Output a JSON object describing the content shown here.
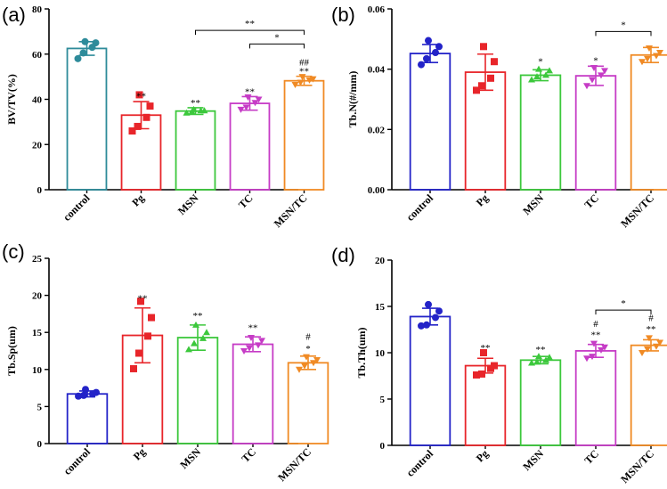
{
  "chart_data": [
    {
      "type": "bar",
      "panel_label": "(a)",
      "ylabel": "BV/TV(%)",
      "ylim": [
        0,
        80
      ],
      "yticks": [
        "0",
        "20",
        "40",
        "60",
        "80"
      ],
      "categories": [
        "control",
        "Pg",
        "MSN",
        "TC",
        "MSN/TC"
      ],
      "colors": [
        "#2E8B9A",
        "#E8252A",
        "#3CC83C",
        "#C63CC6",
        "#F08A24"
      ],
      "marker_shapes": [
        "circle",
        "square",
        "triangle",
        "triangle-down",
        "triangle-down"
      ],
      "values": [
        62.5,
        33,
        34.8,
        38.2,
        48.2
      ],
      "sd": [
        3,
        6,
        1.5,
        3,
        2
      ],
      "points": [
        [
          58,
          60.5,
          63,
          65,
          65.5
        ],
        [
          26,
          28,
          32,
          37,
          42
        ],
        [
          34,
          34.5,
          35,
          35,
          35.5
        ],
        [
          35.5,
          36.5,
          38.5,
          40,
          41
        ],
        [
          46.5,
          47.5,
          48.5,
          49,
          50
        ]
      ],
      "annotations": [
        {
          "category": 1,
          "text": "**",
          "value": 40
        },
        {
          "category": 2,
          "text": "**",
          "value": 37
        },
        {
          "category": 3,
          "text": "**",
          "value": 42
        },
        {
          "category": 4,
          "text": "**",
          "value": 51
        },
        {
          "category": 4,
          "text": "##",
          "value": 55
        }
      ],
      "brackets": [
        {
          "from": 2,
          "to": 4,
          "text": "**",
          "value": 70.5
        },
        {
          "from": 3,
          "to": 4,
          "text": "*",
          "value": 64.5
        }
      ]
    },
    {
      "type": "bar",
      "panel_label": "(b)",
      "ylabel": "Tb.N(#/mm)",
      "ylim": [
        0,
        0.06
      ],
      "yticks": [
        "0.00",
        "0.02",
        "0.04",
        "0.06"
      ],
      "categories": [
        "control",
        "Pg",
        "MSN",
        "TC",
        "MSN/TC"
      ],
      "colors": [
        "#2323C8",
        "#E8252A",
        "#3CC83C",
        "#C63CC6",
        "#F08A24"
      ],
      "marker_shapes": [
        "circle",
        "square",
        "triangle",
        "triangle-down",
        "triangle-down"
      ],
      "values": [
        0.0452,
        0.039,
        0.038,
        0.0378,
        0.0447
      ],
      "sd": [
        0.003,
        0.006,
        0.0018,
        0.0032,
        0.0025
      ],
      "points": [
        [
          0.0415,
          0.0435,
          0.0455,
          0.0475,
          0.0495
        ],
        [
          0.033,
          0.0345,
          0.037,
          0.0425,
          0.0475
        ],
        [
          0.0365,
          0.0375,
          0.038,
          0.0395,
          0.04
        ],
        [
          0.0345,
          0.0365,
          0.038,
          0.0395,
          0.0405
        ],
        [
          0.0425,
          0.0435,
          0.0445,
          0.0455,
          0.047
        ]
      ],
      "annotations": [
        {
          "category": 2,
          "text": "*",
          "value": 0.0415
        },
        {
          "category": 3,
          "text": "*",
          "value": 0.0418
        }
      ],
      "brackets": [
        {
          "from": 3,
          "to": 4,
          "text": "*",
          "value": 0.0525
        }
      ]
    },
    {
      "type": "bar",
      "panel_label": "(c)",
      "ylabel": "Tb.Sp(um)",
      "ylim": [
        0,
        25
      ],
      "yticks": [
        "0",
        "5",
        "10",
        "15",
        "20",
        "25"
      ],
      "categories": [
        "control",
        "Pg",
        "MSN",
        "TC",
        "MSN/TC"
      ],
      "colors": [
        "#2323C8",
        "#E8252A",
        "#3CC83C",
        "#C63CC6",
        "#F08A24"
      ],
      "marker_shapes": [
        "circle",
        "square",
        "triangle",
        "triangle-down",
        "triangle-down"
      ],
      "values": [
        6.7,
        14.6,
        14.3,
        13.4,
        10.9
      ],
      "sd": [
        0.4,
        3.7,
        1.7,
        1.0,
        0.9
      ],
      "points": [
        [
          6.4,
          6.5,
          6.7,
          6.9,
          7.3
        ],
        [
          10.1,
          12.2,
          14.5,
          17.0,
          19.2
        ],
        [
          12.7,
          13.5,
          14.2,
          15.0,
          16.0
        ],
        [
          12.5,
          12.9,
          13.3,
          13.9,
          14.3
        ],
        [
          10.0,
          10.5,
          10.9,
          11.3,
          11.7
        ]
      ],
      "annotations": [
        {
          "category": 1,
          "text": "**",
          "value": 19.2
        },
        {
          "category": 2,
          "text": "**",
          "value": 16.8
        },
        {
          "category": 3,
          "text": "**",
          "value": 15.2
        },
        {
          "category": 4,
          "text": "*",
          "value": 12.4
        },
        {
          "category": 4,
          "text": "#",
          "value": 14.0
        }
      ],
      "brackets": []
    },
    {
      "type": "bar",
      "panel_label": "(d)",
      "ylabel": "Tb.Th(um)",
      "ylim": [
        0,
        20
      ],
      "yticks": [
        "0",
        "5",
        "10",
        "15",
        "20"
      ],
      "categories": [
        "control",
        "Pg",
        "MSN",
        "TC",
        "MSN/TC"
      ],
      "colors": [
        "#2323C8",
        "#E8252A",
        "#3CC83C",
        "#C63CC6",
        "#F08A24"
      ],
      "marker_shapes": [
        "circle",
        "square",
        "triangle",
        "triangle-down",
        "triangle-down"
      ],
      "values": [
        13.9,
        8.6,
        9.2,
        10.2,
        10.8
      ],
      "sd": [
        0.9,
        0.8,
        0.4,
        0.7,
        0.6
      ],
      "points": [
        [
          12.9,
          13.0,
          13.8,
          14.5,
          15.2
        ],
        [
          7.6,
          7.7,
          8.3,
          8.6,
          10.0
        ],
        [
          8.9,
          9.0,
          9.2,
          9.5,
          9.6
        ],
        [
          9.4,
          9.6,
          10.3,
          10.6,
          11.0
        ],
        [
          10.0,
          10.4,
          10.7,
          11.1,
          11.6
        ]
      ],
      "annotations": [
        {
          "category": 1,
          "text": "**",
          "value": 10.2
        },
        {
          "category": 2,
          "text": "**",
          "value": 10.0
        },
        {
          "category": 3,
          "text": "**",
          "value": 11.6
        },
        {
          "category": 3,
          "text": "#",
          "value": 12.8
        },
        {
          "category": 4,
          "text": "**",
          "value": 12.2
        },
        {
          "category": 4,
          "text": "#",
          "value": 13.4
        }
      ],
      "brackets": [
        {
          "from": 3,
          "to": 4,
          "text": "*",
          "value": 14.6
        }
      ]
    }
  ]
}
